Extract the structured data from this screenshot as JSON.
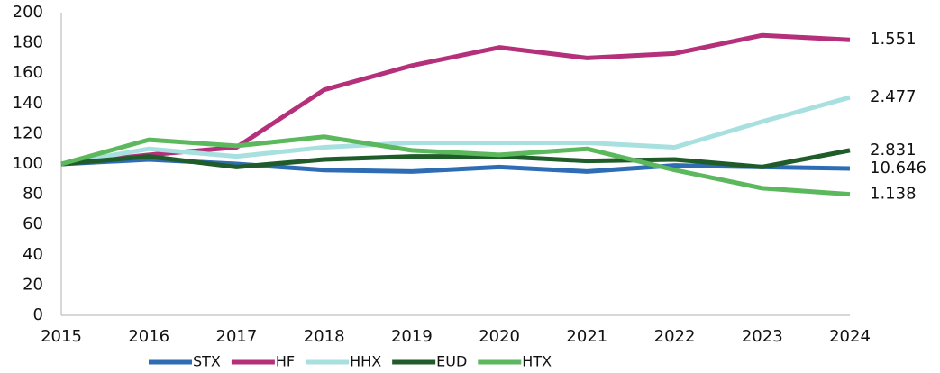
{
  "chart_data": {
    "type": "line",
    "x": [
      2015,
      2016,
      2017,
      2018,
      2019,
      2020,
      2021,
      2022,
      2023,
      2024
    ],
    "xlim": [
      2015,
      2024
    ],
    "xticks": [
      2015,
      2016,
      2017,
      2018,
      2019,
      2020,
      2021,
      2022,
      2023,
      2024
    ],
    "ylim": [
      0,
      200
    ],
    "yticks": [
      0,
      20,
      40,
      60,
      80,
      100,
      120,
      140,
      160,
      180,
      200
    ],
    "grid": false,
    "legend": "bottom",
    "series": [
      {
        "name": "STX",
        "color": "#2e6db4",
        "values": [
          100,
          103,
          100,
          96,
          95,
          98,
          95,
          99,
          98,
          97
        ],
        "end_label": "10.646"
      },
      {
        "name": "HF",
        "color": "#b5307a",
        "values": [
          100,
          106,
          111,
          149,
          165,
          177,
          170,
          173,
          185,
          182
        ],
        "end_label": "1.551"
      },
      {
        "name": "HHX",
        "color": "#a8e0e0",
        "values": [
          100,
          110,
          105,
          111,
          114,
          114,
          114,
          111,
          128,
          144
        ],
        "end_label": "2.477"
      },
      {
        "name": "EUD",
        "color": "#1f5c2a",
        "values": [
          100,
          105,
          98,
          103,
          105,
          105,
          102,
          103,
          98,
          109
        ],
        "end_label": "2.831"
      },
      {
        "name": "HTX",
        "color": "#5cb85c",
        "values": [
          100,
          116,
          112,
          118,
          109,
          106,
          110,
          96,
          84,
          80
        ],
        "end_label": "1.138"
      }
    ]
  }
}
